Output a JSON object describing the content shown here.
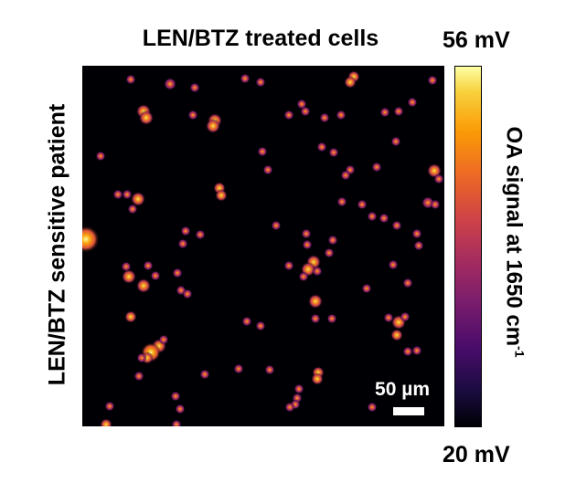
{
  "figure": {
    "title": "LEN/BTZ treated cells",
    "row_label": "LEN/BTZ sensitive patient",
    "scalebar_label": "50 µm",
    "colorbar": {
      "max_label": "56 mV",
      "min_label": "20 mV",
      "label_text": "OA signal at 1650 cm",
      "label_superscript": "-1",
      "colormap": "inferno"
    }
  }
}
